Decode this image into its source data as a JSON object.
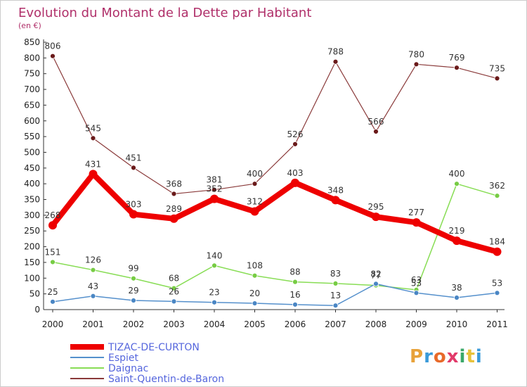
{
  "chart_data": {
    "type": "line",
    "title": "Evolution du Montant de la Dette par Habitant",
    "subtitle": "(en €)",
    "xlabel": "",
    "ylabel": "",
    "categories": [
      "2000",
      "2001",
      "2002",
      "2003",
      "2004",
      "2005",
      "2006",
      "2007",
      "2008",
      "2009",
      "2010",
      "2011"
    ],
    "ylim": [
      0,
      850
    ],
    "yticks": [
      0,
      50,
      100,
      150,
      200,
      250,
      300,
      350,
      400,
      450,
      500,
      550,
      600,
      650,
      700,
      750,
      800,
      850
    ],
    "grid": false,
    "legend_position": "bottom-left",
    "series": [
      {
        "name": "TIZAC-DE-CURTON",
        "color": "#ee0000",
        "values": [
          268,
          431,
          303,
          289,
          352,
          312,
          403,
          348,
          295,
          277,
          219,
          184
        ]
      },
      {
        "name": "Espiet",
        "color": "#5590cc",
        "values": [
          25,
          43,
          29,
          26,
          23,
          20,
          16,
          13,
          82,
          53,
          38,
          53
        ]
      },
      {
        "name": "Daignac",
        "color": "#88dd55",
        "values": [
          151,
          126,
          99,
          68,
          140,
          108,
          88,
          83,
          77,
          63,
          400,
          362
        ]
      },
      {
        "name": "Saint-Quentin-de-Baron",
        "color": "#7a2a2a",
        "values": [
          806,
          545,
          451,
          368,
          381,
          400,
          526,
          788,
          566,
          780,
          769,
          735
        ]
      }
    ]
  },
  "logo": {
    "text": "Proxiti"
  }
}
